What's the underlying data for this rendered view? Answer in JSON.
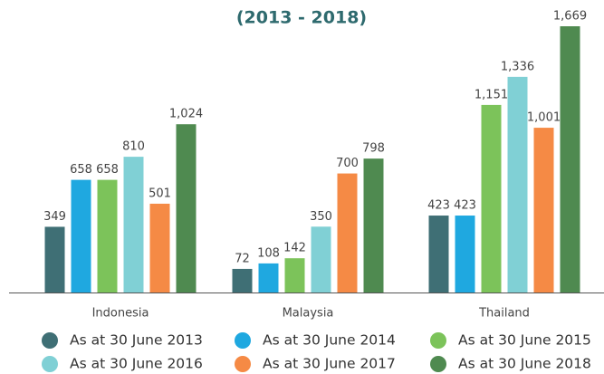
{
  "chart_data": {
    "type": "bar",
    "title": "(2013 - 2018)",
    "categories": [
      "Indonesia",
      "Malaysia",
      "Thailand"
    ],
    "series": [
      {
        "name": "As at 30 June 2013",
        "color": "#3f6f75",
        "values": [
          349,
          72,
          423
        ]
      },
      {
        "name": "As at 30 June 2014",
        "color": "#1fa8e0",
        "values": [
          658,
          108,
          423
        ]
      },
      {
        "name": "As at 30 June 2015",
        "color": "#7cc35a",
        "values": [
          658,
          142,
          1151
        ],
        "value_labels": [
          "658",
          "142",
          "1,151"
        ]
      },
      {
        "name": "As at 30 June 2016",
        "color": "#80d0d5",
        "values": [
          810,
          350,
          1336
        ],
        "value_labels": [
          "810",
          "350",
          "1,336"
        ]
      },
      {
        "name": "As at 30 June 2017",
        "color": "#f58a45",
        "values": [
          501,
          700,
          1001
        ],
        "value_labels": [
          "501",
          "700",
          "1,001"
        ]
      },
      {
        "name": "As at 30 June 2018",
        "color": "#4f8a50",
        "values": [
          1024,
          798,
          1669
        ],
        "value_labels": [
          "1,024",
          "798",
          "1,669"
        ]
      }
    ]
  }
}
